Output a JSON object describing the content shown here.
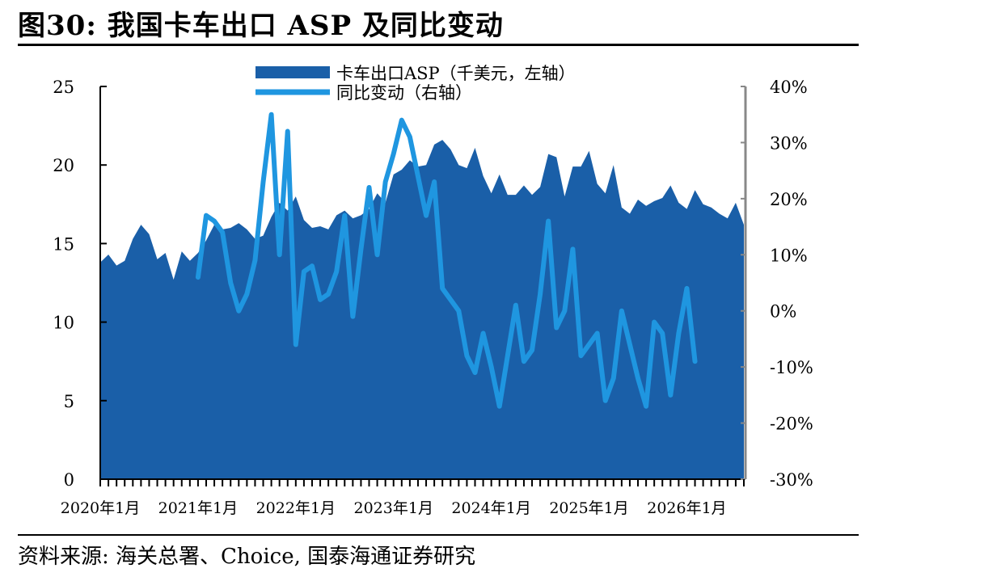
{
  "figure": {
    "title": "图30: 我国卡车出口 ASP 及同比变动",
    "source": "资料来源: 海关总署、Choice, 国泰海通证券研究"
  },
  "colors": {
    "area": "#1a5fa8",
    "line": "#1f96e0",
    "right_axis": "#888888"
  },
  "chart_data": {
    "type": "area",
    "x_ticks": [
      "2020年1月",
      "2021年1月",
      "2022年1月",
      "2023年1月",
      "2024年1月",
      "2025年1月",
      "2026年1月"
    ],
    "start": "2020年1月",
    "y_left": {
      "min": 0,
      "max": 25,
      "ticks": [
        "0",
        "5",
        "10",
        "15",
        "20",
        "25"
      ]
    },
    "y_right": {
      "min": -30,
      "max": 40,
      "ticks": [
        "-30%",
        "-20%",
        "-10%",
        "0%",
        "10%",
        "20%",
        "30%",
        "40%"
      ]
    },
    "series": [
      {
        "name": "卡车出口ASP（千美元，左轴）",
        "type": "area",
        "axis": "left",
        "values": [
          13.8,
          14.3,
          13.6,
          13.9,
          15.3,
          16.2,
          15.6,
          14.0,
          14.4,
          12.7,
          14.5,
          13.9,
          14.4,
          15.2,
          16.2,
          15.9,
          16.0,
          16.3,
          15.9,
          15.3,
          15.5,
          16.7,
          17.6,
          17.1,
          18.0,
          16.5,
          16.0,
          16.1,
          15.9,
          16.8,
          17.1,
          16.6,
          16.8,
          17.2,
          18.2,
          17.6,
          19.4,
          19.7,
          20.3,
          19.9,
          20.0,
          21.3,
          21.6,
          21.0,
          20.0,
          19.8,
          21.1,
          19.3,
          18.2,
          19.4,
          18.1,
          18.1,
          18.7,
          18.1,
          18.6,
          20.7,
          20.5,
          18.0,
          19.9,
          19.9,
          20.9,
          18.8,
          18.2,
          20.0,
          17.3,
          16.9,
          17.8,
          17.4,
          17.7,
          17.9,
          18.7,
          17.6,
          17.2,
          18.4,
          17.5,
          17.3,
          16.9,
          16.6,
          17.6,
          16.2
        ]
      },
      {
        "name": "同比变动（右轴）",
        "type": "line",
        "axis": "right",
        "start_index": 12,
        "values": [
          6,
          17,
          16,
          14,
          5,
          0,
          3,
          9,
          23,
          35,
          10,
          32,
          -6,
          7,
          8,
          2,
          3,
          7,
          17,
          -1,
          11,
          22,
          10,
          23,
          28,
          34,
          31,
          24,
          17,
          23,
          4,
          2,
          0,
          -8,
          -11,
          -4,
          -10,
          -17,
          -8,
          1,
          -9,
          -7,
          3,
          16,
          -3,
          0,
          11,
          -8,
          -6,
          -4,
          -16,
          -12,
          0,
          -6,
          -12,
          -17,
          -2,
          -4,
          -15,
          -4,
          4,
          -9
        ]
      }
    ]
  }
}
